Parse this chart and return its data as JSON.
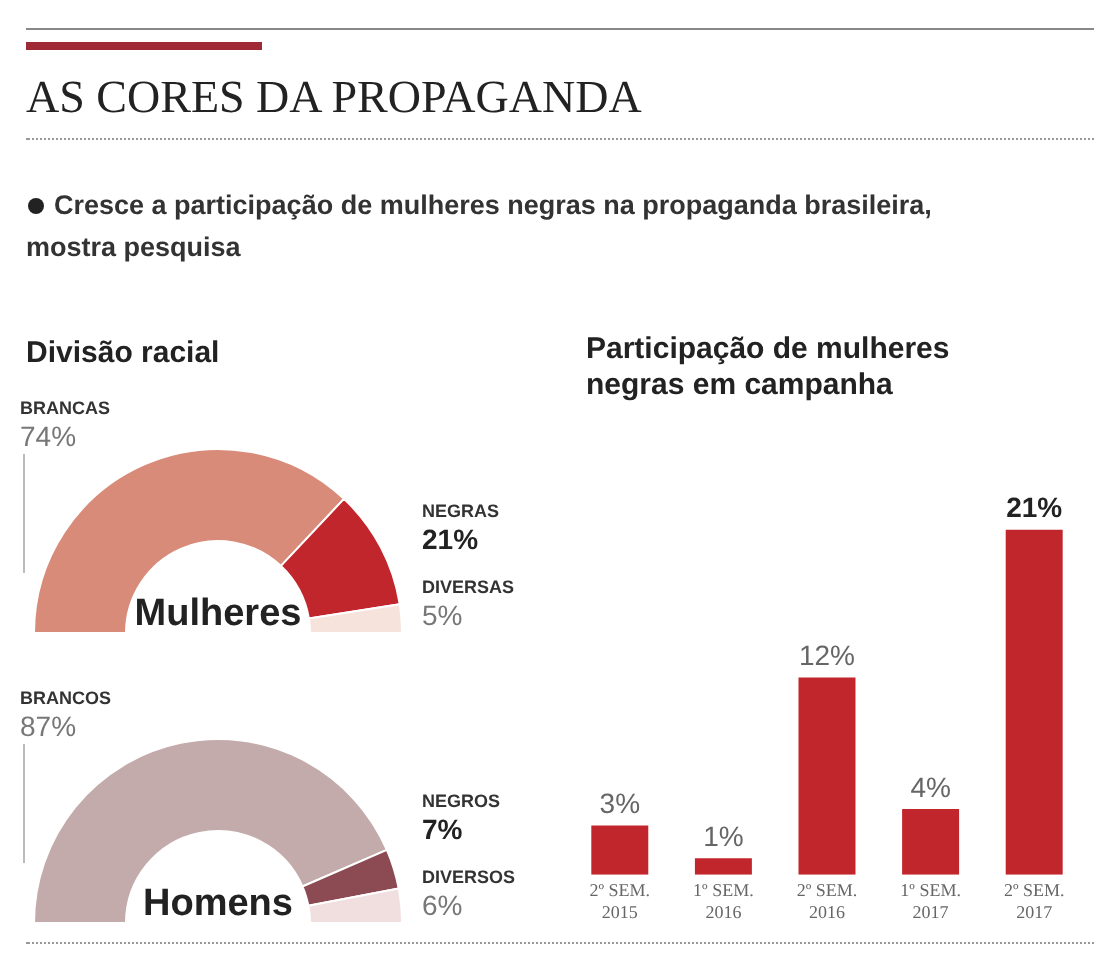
{
  "chart_data": [
    {
      "type": "other",
      "title": "AS CORES DA PROPAGANDA",
      "subtitle": "Cresce a participação de mulheres negras na propaganda brasileira, mostra pesquisa"
    },
    {
      "type": "donut",
      "title": "Divisão racial",
      "categories": [
        "BRANCAS",
        "NEGRAS",
        "DIVERSAS"
      ],
      "values": [
        74,
        21,
        5
      ],
      "colors": [
        "#d98b79",
        "#c0262b",
        "#f6e4dc"
      ],
      "value_labels": [
        "74%",
        "21%",
        "5%"
      ],
      "annotations": [
        "Mulheres"
      ],
      "legend": false
    },
    {
      "type": "donut",
      "categories": [
        "BRANCOS",
        "NEGROS",
        "DIVERSOS"
      ],
      "values": [
        87,
        7,
        6
      ],
      "colors": [
        "#c4abab",
        "#8c4b52",
        "#f1dede"
      ],
      "value_labels": [
        "87%",
        "7%",
        "6%"
      ],
      "annotations": [
        "Homens"
      ],
      "legend": false
    },
    {
      "type": "bar",
      "title": "Participação de mulheres negras em campanha",
      "categories": [
        "2º SEM. 2015",
        "1º SEM. 2016",
        "2º SEM. 2016",
        "1º SEM. 2017",
        "2º SEM. 2017"
      ],
      "values": [
        3,
        1,
        12,
        4,
        21
      ],
      "color": "#c0262b",
      "value_labels": [
        "3%",
        "1%",
        "12%",
        "4%",
        "21%"
      ],
      "grid": false,
      "legend": false
    }
  ]
}
